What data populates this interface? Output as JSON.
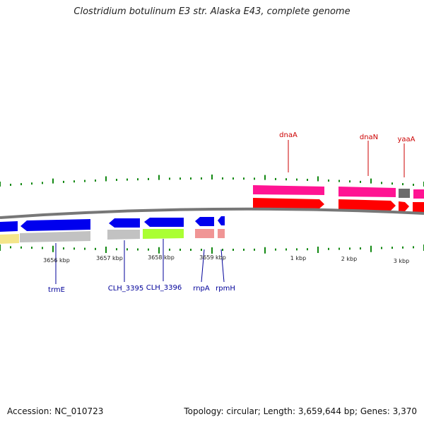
{
  "title": "Clostridium botulinum E3 str. Alaska E43, complete genome",
  "footer": {
    "accession": "Accession: NC_010723",
    "summary": "Topology: circular; Length: 3,659,644 bp; Genes: 3,370"
  },
  "colors": {
    "cds_forward": "#ff0000",
    "cds_reverse": "#0000ee",
    "gene_forward": "#ff1493",
    "backbone": "#777777",
    "tick": "#118811",
    "label_forward": "#cc0000",
    "label_reverse": "#000099"
  },
  "scale_labels": {
    "k3656": "3656 kbp",
    "k3657": "3657 kbp",
    "k3658": "3658 kbp",
    "k3659": "3659 kbp",
    "k1": "1 kbp",
    "k2": "2 kbp",
    "k3": "3 kbp"
  },
  "features": {
    "forward": {
      "dnaA": "dnaA",
      "dnaN": "dnaN",
      "yaaA": "yaaA"
    },
    "reverse": {
      "trmE": "trmE",
      "CLH_3395": "CLH_3395",
      "CLH_3396": "CLH_3396",
      "rnpA": "rnpA",
      "rpmH": "rpmH"
    }
  }
}
